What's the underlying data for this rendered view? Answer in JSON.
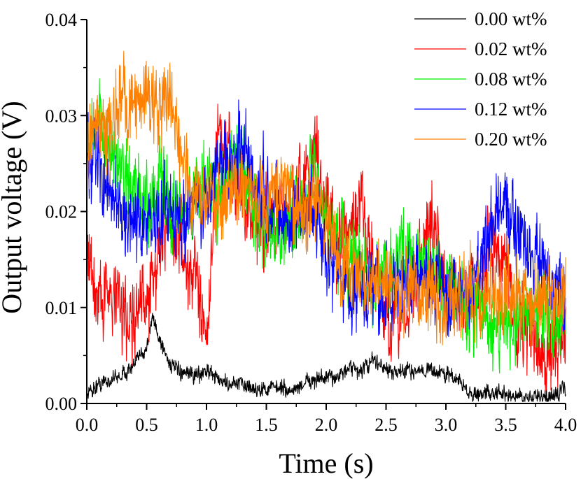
{
  "chart_data": {
    "type": "line",
    "title": "",
    "xlabel": "Time (s)",
    "ylabel": "Output voltage (V)",
    "xlim": [
      0.0,
      4.0
    ],
    "ylim": [
      0.0,
      0.04
    ],
    "x_ticks": [
      "0.0",
      "0.5",
      "1.0",
      "1.5",
      "2.0",
      "2.5",
      "3.0",
      "3.5",
      "4.0"
    ],
    "y_ticks": [
      "0.00",
      "0.01",
      "0.02",
      "0.03",
      "0.04"
    ],
    "grid": false,
    "legend_position": "top-right",
    "series": [
      {
        "name": "0.00 wt%",
        "color": "#000000",
        "x": [
          0.0,
          0.1,
          0.2,
          0.3,
          0.4,
          0.5,
          0.55,
          0.6,
          0.7,
          0.8,
          0.9,
          1.0,
          1.1,
          1.2,
          1.3,
          1.4,
          1.5,
          1.6,
          1.7,
          1.8,
          1.9,
          2.0,
          2.1,
          2.2,
          2.3,
          2.4,
          2.5,
          2.6,
          2.7,
          2.8,
          2.9,
          3.0,
          3.1,
          3.2,
          3.3,
          3.4,
          3.5,
          3.6,
          3.7,
          3.8,
          3.9,
          4.0
        ],
        "y": [
          0.001,
          0.002,
          0.0025,
          0.003,
          0.004,
          0.006,
          0.009,
          0.007,
          0.004,
          0.003,
          0.003,
          0.0035,
          0.0025,
          0.002,
          0.002,
          0.0015,
          0.0015,
          0.0018,
          0.0012,
          0.002,
          0.0025,
          0.0025,
          0.003,
          0.0035,
          0.0035,
          0.0045,
          0.0035,
          0.003,
          0.0035,
          0.0035,
          0.0035,
          0.003,
          0.0025,
          0.001,
          0.001,
          0.0012,
          0.0008,
          0.0008,
          0.0006,
          0.0006,
          0.0008,
          0.0015
        ]
      },
      {
        "name": "0.02 wt%",
        "color": "#ff0000",
        "x": [
          0.0,
          0.1,
          0.2,
          0.3,
          0.4,
          0.5,
          0.6,
          0.7,
          0.8,
          0.9,
          1.0,
          1.1,
          1.2,
          1.3,
          1.4,
          1.5,
          1.6,
          1.7,
          1.8,
          1.9,
          2.0,
          2.1,
          2.2,
          2.3,
          2.4,
          2.5,
          2.6,
          2.7,
          2.8,
          2.9,
          3.0,
          3.1,
          3.2,
          3.3,
          3.4,
          3.5,
          3.6,
          3.7,
          3.8,
          3.9,
          4.0
        ],
        "y": [
          0.016,
          0.011,
          0.012,
          0.01,
          0.009,
          0.011,
          0.016,
          0.019,
          0.016,
          0.013,
          0.008,
          0.028,
          0.026,
          0.021,
          0.019,
          0.018,
          0.019,
          0.02,
          0.023,
          0.026,
          0.022,
          0.016,
          0.018,
          0.021,
          0.014,
          0.008,
          0.008,
          0.01,
          0.016,
          0.019,
          0.012,
          0.01,
          0.011,
          0.013,
          0.018,
          0.014,
          0.009,
          0.008,
          0.004,
          0.006,
          0.008
        ]
      },
      {
        "name": "0.08 wt%",
        "color": "#00ee00",
        "x": [
          0.0,
          0.1,
          0.2,
          0.3,
          0.4,
          0.5,
          0.6,
          0.7,
          0.8,
          0.9,
          1.0,
          1.1,
          1.2,
          1.3,
          1.4,
          1.5,
          1.6,
          1.7,
          1.8,
          1.9,
          2.0,
          2.1,
          2.2,
          2.3,
          2.4,
          2.5,
          2.6,
          2.7,
          2.8,
          2.9,
          3.0,
          3.1,
          3.2,
          3.3,
          3.4,
          3.5,
          3.6,
          3.7,
          3.8,
          3.9,
          4.0
        ],
        "y": [
          0.028,
          0.03,
          0.025,
          0.024,
          0.022,
          0.021,
          0.023,
          0.02,
          0.019,
          0.022,
          0.024,
          0.022,
          0.025,
          0.027,
          0.02,
          0.018,
          0.017,
          0.019,
          0.021,
          0.023,
          0.018,
          0.017,
          0.015,
          0.014,
          0.012,
          0.014,
          0.015,
          0.016,
          0.015,
          0.014,
          0.012,
          0.011,
          0.01,
          0.01,
          0.009,
          0.008,
          0.009,
          0.009,
          0.01,
          0.009,
          0.009
        ]
      },
      {
        "name": "0.12 wt%",
        "color": "#0000ff",
        "x": [
          0.0,
          0.1,
          0.2,
          0.3,
          0.4,
          0.5,
          0.6,
          0.7,
          0.8,
          0.9,
          1.0,
          1.1,
          1.2,
          1.3,
          1.4,
          1.5,
          1.6,
          1.7,
          1.8,
          1.9,
          2.0,
          2.1,
          2.2,
          2.3,
          2.4,
          2.5,
          2.6,
          2.7,
          2.8,
          2.9,
          3.0,
          3.1,
          3.2,
          3.3,
          3.4,
          3.5,
          3.6,
          3.7,
          3.8,
          3.9,
          4.0
        ],
        "y": [
          0.026,
          0.025,
          0.022,
          0.019,
          0.018,
          0.018,
          0.02,
          0.021,
          0.019,
          0.02,
          0.021,
          0.025,
          0.026,
          0.027,
          0.023,
          0.021,
          0.02,
          0.019,
          0.02,
          0.02,
          0.016,
          0.014,
          0.012,
          0.012,
          0.011,
          0.011,
          0.012,
          0.013,
          0.014,
          0.014,
          0.012,
          0.011,
          0.012,
          0.016,
          0.019,
          0.021,
          0.018,
          0.016,
          0.015,
          0.012,
          0.011
        ]
      },
      {
        "name": "0.20 wt%",
        "color": "#ff8000",
        "x": [
          0.0,
          0.1,
          0.2,
          0.3,
          0.4,
          0.5,
          0.6,
          0.7,
          0.8,
          0.9,
          1.0,
          1.1,
          1.2,
          1.3,
          1.4,
          1.5,
          1.6,
          1.7,
          1.8,
          1.9,
          2.0,
          2.1,
          2.2,
          2.3,
          2.4,
          2.5,
          2.6,
          2.7,
          2.8,
          2.9,
          3.0,
          3.1,
          3.2,
          3.3,
          3.4,
          3.5,
          3.6,
          3.7,
          3.8,
          3.9,
          4.0
        ],
        "y": [
          0.026,
          0.029,
          0.028,
          0.031,
          0.032,
          0.033,
          0.03,
          0.033,
          0.025,
          0.022,
          0.022,
          0.021,
          0.022,
          0.023,
          0.022,
          0.02,
          0.022,
          0.021,
          0.02,
          0.021,
          0.019,
          0.015,
          0.014,
          0.014,
          0.013,
          0.012,
          0.012,
          0.012,
          0.012,
          0.011,
          0.01,
          0.011,
          0.012,
          0.011,
          0.011,
          0.012,
          0.011,
          0.011,
          0.011,
          0.011,
          0.012
        ]
      }
    ]
  }
}
